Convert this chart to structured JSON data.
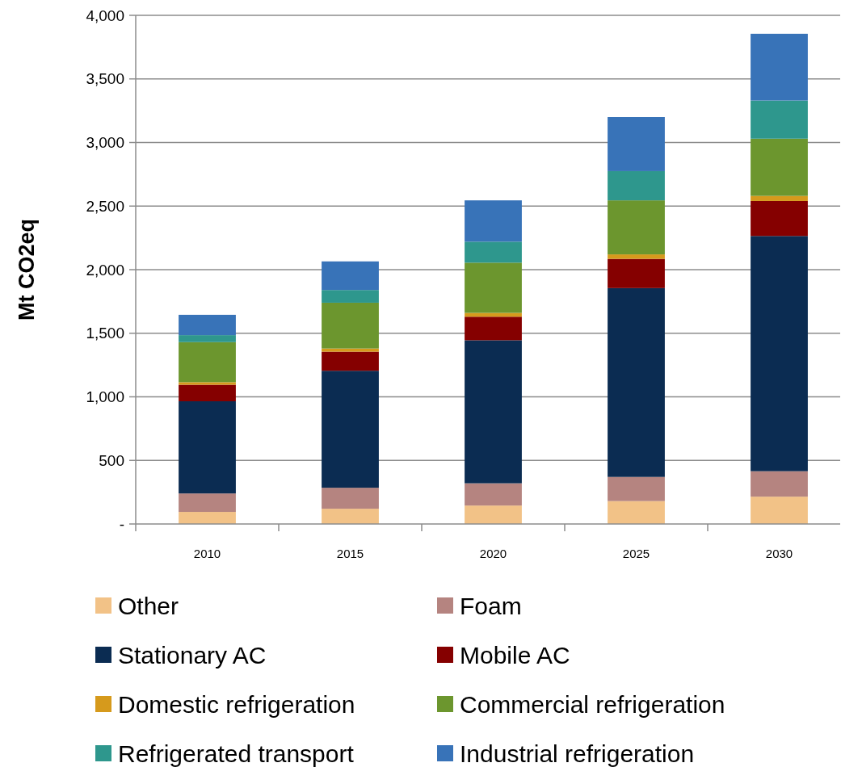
{
  "chart_data": {
    "type": "bar",
    "stacked": true,
    "ylabel": "Mt CO2eq",
    "categories": [
      "2010",
      "2015",
      "2020",
      "2025",
      "2030"
    ],
    "ylim": [
      0,
      4000
    ],
    "yticks": [
      {
        "value": 0,
        "label": "-"
      },
      {
        "value": 500,
        "label": "500"
      },
      {
        "value": 1000,
        "label": "1,000"
      },
      {
        "value": 1500,
        "label": "1,500"
      },
      {
        "value": 2000,
        "label": "2,000"
      },
      {
        "value": 2500,
        "label": "2,500"
      },
      {
        "value": 3000,
        "label": "3,000"
      },
      {
        "value": 3500,
        "label": "3,500"
      },
      {
        "value": 4000,
        "label": "4,000"
      }
    ],
    "grid": "y",
    "legend": "bottom",
    "series": [
      {
        "name": "Other",
        "color": "#f2c287",
        "values": [
          95,
          120,
          145,
          180,
          215
        ]
      },
      {
        "name": "Foam",
        "color": "#b58480",
        "values": [
          145,
          165,
          175,
          190,
          200
        ]
      },
      {
        "name": "Stationary AC",
        "color": "#0b2c52",
        "values": [
          725,
          920,
          1125,
          1485,
          1850
        ]
      },
      {
        "name": "Mobile AC",
        "color": "#850000",
        "values": [
          130,
          150,
          185,
          230,
          275
        ]
      },
      {
        "name": "Domestic refrigeration",
        "color": "#d69a1c",
        "values": [
          20,
          25,
          30,
          35,
          40
        ]
      },
      {
        "name": "Commercial refrigeration",
        "color": "#6c962e",
        "values": [
          315,
          360,
          395,
          425,
          450
        ]
      },
      {
        "name": "Refrigerated transport",
        "color": "#2e978d",
        "values": [
          55,
          100,
          165,
          230,
          300
        ]
      },
      {
        "name": "Industrial refrigeration",
        "color": "#3873b8",
        "values": [
          160,
          225,
          325,
          425,
          525
        ]
      }
    ]
  }
}
